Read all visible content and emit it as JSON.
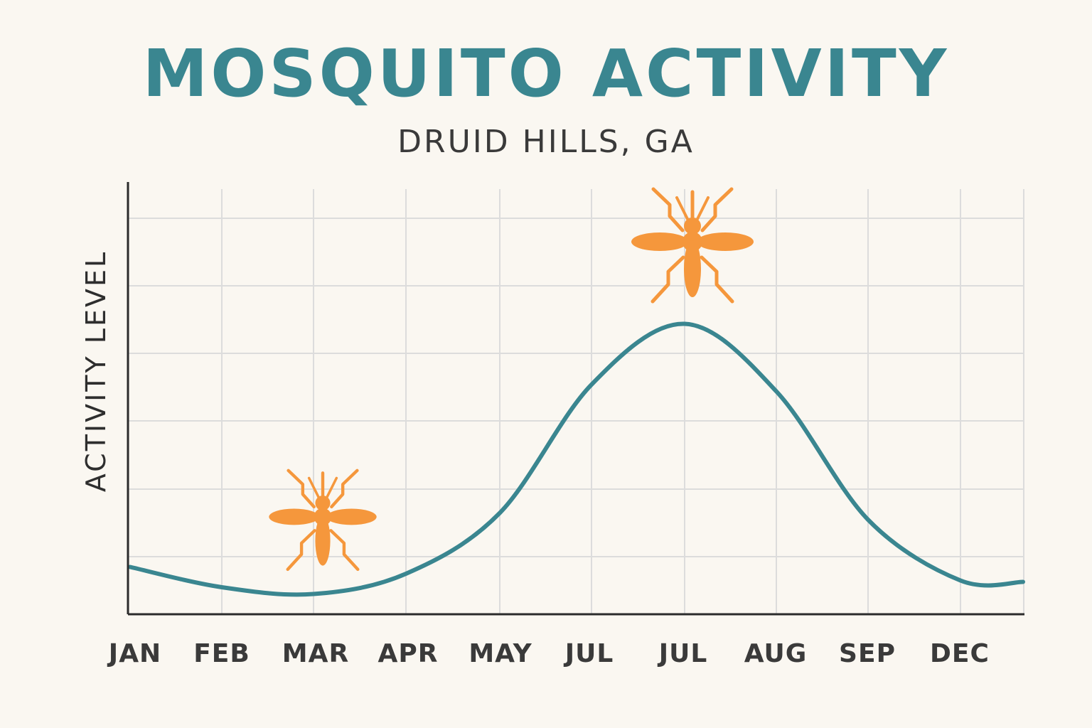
{
  "title": "MOSQUITO ACTIVITY",
  "subtitle": "DRUID HILLS, GA",
  "colors": {
    "title": "#3a8690",
    "line": "#3a8690",
    "mosquito": "#f5973c",
    "grid": "#dcdcdc",
    "axis": "#2b2b2b",
    "background": "#faf7f1"
  },
  "icons": [
    "mosquito-icon-low",
    "mosquito-icon-peak"
  ],
  "chart_data": {
    "type": "line",
    "title": "MOSQUITO ACTIVITY",
    "subtitle": "DRUID HILLS, GA",
    "xlabel": "",
    "ylabel": "ACTIVITY LEVEL",
    "categories": [
      "JAN",
      "FEB",
      "MAR",
      "APR",
      "MAY",
      "JUL",
      "JUL",
      "AUG",
      "SEP",
      "DEC"
    ],
    "series": [
      {
        "values": [
          0.7,
          0.4,
          0.3,
          0.6,
          1.5,
          3.4,
          4.3,
          3.3,
          1.4,
          0.5
        ]
      }
    ],
    "ylim": [
      0,
      6.4
    ],
    "grid": true,
    "y_tick_labels": false,
    "legend": "none"
  }
}
